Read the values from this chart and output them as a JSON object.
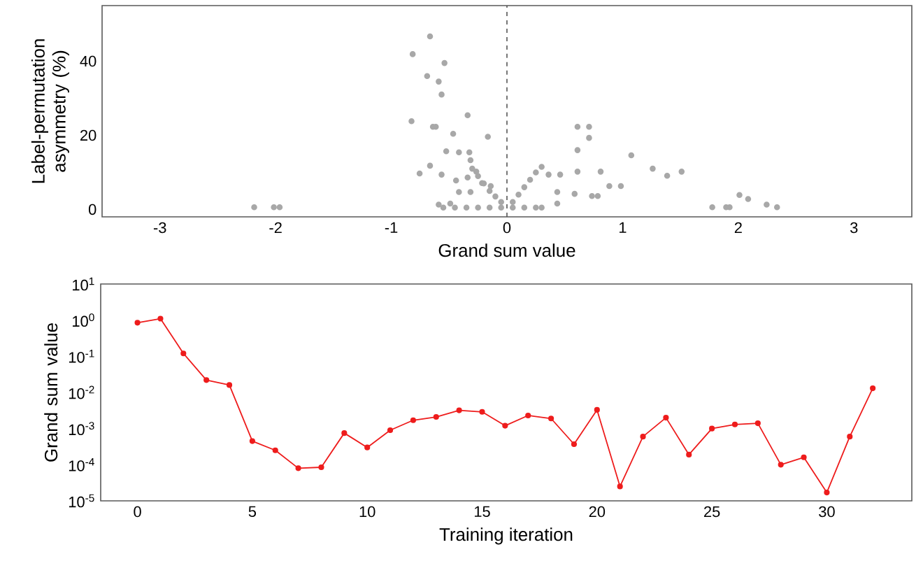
{
  "chart_data": [
    {
      "type": "scatter",
      "xlabel": "Grand sum value",
      "ylabel": "Label-permutation asymmetry (%)",
      "xlim": [
        -3.5,
        3.5
      ],
      "ylim": [
        -2,
        55
      ],
      "xticks": [
        -3,
        -2,
        -1,
        0,
        1,
        2,
        3
      ],
      "yticks": [
        0,
        20,
        40
      ],
      "marker": "circle",
      "ref_lines": [
        {
          "axis": "x",
          "value": 0,
          "color": "#555555",
          "line_style": "dashed"
        }
      ],
      "series": [
        {
          "color": "#a8a8a8",
          "x": [
            -0.665,
            -0.815,
            -0.54,
            -0.69,
            -0.59,
            -0.565,
            -0.825,
            -0.64,
            -0.615,
            -0.465,
            -0.34,
            -0.165,
            -0.755,
            -0.665,
            -0.525,
            -0.415,
            -0.325,
            -0.315,
            -0.565,
            -0.44,
            -0.34,
            -0.265,
            -0.215,
            -0.415,
            -0.315,
            -0.14,
            -0.3,
            -0.25,
            -0.2,
            -0.15,
            -0.1,
            -0.05,
            0.05,
            0.1,
            0.15,
            0.2,
            0.25,
            0.3,
            -0.55,
            -0.45,
            -0.35,
            -0.25,
            -0.15,
            -0.05,
            0.05,
            0.15,
            0.25,
            0.3,
            -0.59,
            -0.49,
            0.435,
            0.435,
            0.36,
            0.46,
            0.61,
            0.61,
            0.71,
            0.71,
            0.61,
            0.585,
            0.735,
            0.785,
            0.81,
            0.885,
            0.985,
            1.075,
            1.26,
            1.385,
            1.51,
            2.01,
            2.085,
            1.775,
            1.895,
            1.925,
            2.245,
            2.335,
            -2.185,
            -2.015,
            -1.965
          ],
          "values": [
            46.7,
            41.9,
            39.5,
            36,
            34.5,
            31,
            23.8,
            22.3,
            22.3,
            20.4,
            25.4,
            19.6,
            9.7,
            11.8,
            15.7,
            15.4,
            15.4,
            13.3,
            9.4,
            7.8,
            8.6,
            10.2,
            7.1,
            4.7,
            4.7,
            6.3,
            11,
            9,
            7,
            5,
            3.5,
            2,
            2,
            4,
            6,
            8,
            10,
            11.5,
            0.5,
            0.5,
            0.5,
            0.5,
            0.5,
            0.5,
            0.5,
            0.5,
            0.5,
            0.5,
            1.3,
            1.6,
            4.7,
            1.6,
            9.4,
            9.4,
            10.2,
            22.3,
            22.3,
            19.3,
            16,
            4.2,
            3.6,
            3.6,
            10.2,
            6.3,
            6.3,
            14.6,
            11,
            9.1,
            10.2,
            3.9,
            2.8,
            0.6,
            0.6,
            0.6,
            1.3,
            0.6,
            0.6,
            0.6,
            0.6
          ]
        }
      ]
    },
    {
      "type": "line",
      "xlabel": "Training iteration",
      "ylabel": "Grand sum value",
      "log": "y",
      "xlim": [
        -1.6,
        33.7
      ],
      "ylim": [
        1e-05,
        10
      ],
      "xticks": [
        0,
        5,
        10,
        15,
        20,
        25,
        30
      ],
      "yticks": [
        {
          "value": 1e-05,
          "label": "10$^{-5}$"
        },
        {
          "value": 0.0001,
          "label": "10$^{-4}$"
        },
        {
          "value": 0.001,
          "label": "10$^{-3}$"
        },
        {
          "value": 0.01,
          "label": "10$^{-2}$"
        },
        {
          "value": 0.1,
          "label": "10$^{-1}$"
        },
        {
          "value": 1,
          "label": "10$^{0}$"
        },
        {
          "value": 10,
          "label": "10$^{1}$"
        }
      ],
      "marker": "circle",
      "line_style": "solid",
      "series": [
        {
          "color": "#ee1c1c",
          "x": [
            0,
            1,
            2,
            3,
            4,
            5,
            6,
            7,
            8,
            9,
            10,
            11,
            12,
            13,
            14,
            15,
            16,
            17,
            18,
            19,
            20,
            21,
            22,
            23,
            24,
            25,
            26,
            27,
            28,
            29,
            30,
            31,
            32
          ],
          "values": [
            0.85,
            1.1,
            0.12,
            0.022,
            0.016,
            0.00045,
            0.00025,
            8e-05,
            8.5e-05,
            0.00075,
            0.0003,
            0.0009,
            0.0017,
            0.0021,
            0.0032,
            0.0029,
            0.0012,
            0.0023,
            0.0019,
            0.00037,
            0.0033,
            2.5e-05,
            0.0006,
            0.002,
            0.00019,
            0.001,
            0.0013,
            0.0014,
            0.0001,
            0.00016,
            1.7e-05,
            0.0006,
            0.013
          ]
        }
      ]
    }
  ]
}
